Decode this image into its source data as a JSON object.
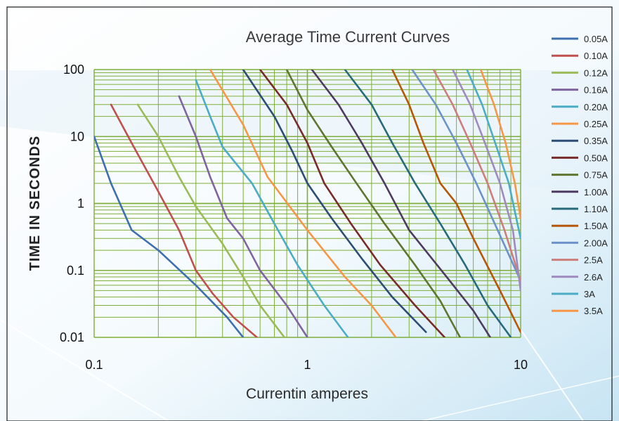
{
  "chart_data": {
    "type": "line",
    "title": "Average Time Current Curves",
    "xlabel": "Currentin amperes",
    "ylabel": "TIME IN SECONDS",
    "x_scale": "log",
    "y_scale": "log",
    "xlim": [
      0.1,
      10
    ],
    "ylim": [
      0.01,
      100
    ],
    "x_ticks": [
      "0.1",
      "1",
      "10"
    ],
    "y_ticks": [
      "100",
      "10",
      "1",
      "0.1",
      "0.01"
    ],
    "grid": true,
    "legend_position": "right",
    "grid_color": "#7fae3a",
    "series": [
      {
        "name": "0.05A",
        "color": "#3d6fb0",
        "points": [
          [
            0.1,
            10
          ],
          [
            0.12,
            2
          ],
          [
            0.15,
            0.4
          ],
          [
            0.2,
            0.2
          ],
          [
            0.3,
            0.06
          ],
          [
            0.42,
            0.02
          ],
          [
            0.5,
            0.01
          ]
        ]
      },
      {
        "name": "0.10A",
        "color": "#c0504d",
        "points": [
          [
            0.12,
            30
          ],
          [
            0.15,
            8
          ],
          [
            0.2,
            1.5
          ],
          [
            0.25,
            0.4
          ],
          [
            0.3,
            0.1
          ],
          [
            0.36,
            0.045
          ],
          [
            0.45,
            0.02
          ],
          [
            0.58,
            0.01
          ]
        ]
      },
      {
        "name": "0.12A",
        "color": "#9bbb59",
        "points": [
          [
            0.16,
            30
          ],
          [
            0.2,
            10
          ],
          [
            0.25,
            2.5
          ],
          [
            0.3,
            0.9
          ],
          [
            0.4,
            0.25
          ],
          [
            0.5,
            0.08
          ],
          [
            0.6,
            0.03
          ],
          [
            0.78,
            0.01
          ]
        ]
      },
      {
        "name": "0.16A",
        "color": "#8064a2",
        "points": [
          [
            0.25,
            40
          ],
          [
            0.3,
            10
          ],
          [
            0.35,
            2.5
          ],
          [
            0.42,
            0.6
          ],
          [
            0.5,
            0.3
          ],
          [
            0.6,
            0.1
          ],
          [
            0.8,
            0.03
          ],
          [
            1.0,
            0.01
          ]
        ]
      },
      {
        "name": "0.20A",
        "color": "#4bacc6",
        "points": [
          [
            0.3,
            70
          ],
          [
            0.35,
            20
          ],
          [
            0.4,
            7
          ],
          [
            0.55,
            2
          ],
          [
            0.7,
            0.5
          ],
          [
            0.9,
            0.12
          ],
          [
            1.2,
            0.03
          ],
          [
            1.55,
            0.01
          ]
        ]
      },
      {
        "name": "0.25A",
        "color": "#f79646",
        "points": [
          [
            0.35,
            100
          ],
          [
            0.5,
            15
          ],
          [
            0.65,
            2.5
          ],
          [
            1.0,
            0.4
          ],
          [
            1.5,
            0.08
          ],
          [
            2.0,
            0.03
          ],
          [
            2.6,
            0.01
          ]
        ]
      },
      {
        "name": "0.35A",
        "color": "#2c4d75",
        "points": [
          [
            0.5,
            100
          ],
          [
            0.7,
            20
          ],
          [
            0.85,
            6
          ],
          [
            1.0,
            2
          ],
          [
            1.3,
            0.6
          ],
          [
            1.8,
            0.15
          ],
          [
            2.5,
            0.04
          ],
          [
            3.6,
            0.012
          ]
        ]
      },
      {
        "name": "0.50A",
        "color": "#772c2a",
        "points": [
          [
            0.6,
            100
          ],
          [
            0.8,
            30
          ],
          [
            1.0,
            8
          ],
          [
            1.2,
            2
          ],
          [
            1.6,
            0.5
          ],
          [
            2.2,
            0.12
          ],
          [
            3.2,
            0.03
          ],
          [
            4.4,
            0.01
          ]
        ]
      },
      {
        "name": "0.75A",
        "color": "#5f7530",
        "points": [
          [
            0.8,
            100
          ],
          [
            1.0,
            25
          ],
          [
            1.3,
            7
          ],
          [
            1.7,
            2
          ],
          [
            2.3,
            0.5
          ],
          [
            3.2,
            0.12
          ],
          [
            4.2,
            0.035
          ],
          [
            5.2,
            0.01
          ]
        ]
      },
      {
        "name": "1.00A",
        "color": "#4d3b62",
        "points": [
          [
            1.05,
            100
          ],
          [
            1.4,
            30
          ],
          [
            1.8,
            8
          ],
          [
            2.3,
            2
          ],
          [
            3.0,
            0.4
          ],
          [
            4.5,
            0.08
          ],
          [
            6.0,
            0.025
          ],
          [
            7.2,
            0.01
          ]
        ]
      },
      {
        "name": "1.10A",
        "color": "#276a7c",
        "points": [
          [
            1.5,
            100
          ],
          [
            2.0,
            30
          ],
          [
            2.5,
            8
          ],
          [
            3.2,
            2
          ],
          [
            4.2,
            0.5
          ],
          [
            5.5,
            0.12
          ],
          [
            7.0,
            0.03
          ],
          [
            9.0,
            0.01
          ]
        ]
      },
      {
        "name": "1.50A",
        "color": "#b65708",
        "points": [
          [
            2.5,
            100
          ],
          [
            3.0,
            30
          ],
          [
            3.5,
            8
          ],
          [
            4.2,
            2
          ],
          [
            5.0,
            1.0
          ],
          [
            6.0,
            0.3
          ],
          [
            8.0,
            0.05
          ],
          [
            10,
            0.012
          ]
        ]
      },
      {
        "name": "2.00A",
        "color": "#6b93c9",
        "points": [
          [
            3.1,
            100
          ],
          [
            4.0,
            30
          ],
          [
            5.0,
            8
          ],
          [
            6.2,
            2
          ],
          [
            7.8,
            0.4
          ],
          [
            10,
            0.07
          ]
        ]
      },
      {
        "name": "2.5A",
        "color": "#cd7d7a",
        "points": [
          [
            3.9,
            100
          ],
          [
            4.8,
            30
          ],
          [
            5.8,
            8
          ],
          [
            7.0,
            2
          ],
          [
            8.4,
            0.4
          ],
          [
            10,
            0.07
          ]
        ]
      },
      {
        "name": "2.6A",
        "color": "#9f8ac0",
        "points": [
          [
            4.8,
            100
          ],
          [
            5.8,
            30
          ],
          [
            6.8,
            8
          ],
          [
            8.0,
            2
          ],
          [
            9.2,
            0.4
          ],
          [
            10,
            0.05
          ]
        ]
      },
      {
        "name": "3A",
        "color": "#4bacc6",
        "points": [
          [
            5.6,
            100
          ],
          [
            6.6,
            30
          ],
          [
            7.6,
            8
          ],
          [
            8.8,
            2
          ],
          [
            10,
            0.3
          ]
        ]
      },
      {
        "name": "3.5A",
        "color": "#f79646",
        "points": [
          [
            6.5,
            100
          ],
          [
            7.5,
            30
          ],
          [
            8.5,
            8
          ],
          [
            9.4,
            2
          ],
          [
            10,
            0.6
          ]
        ]
      }
    ]
  }
}
